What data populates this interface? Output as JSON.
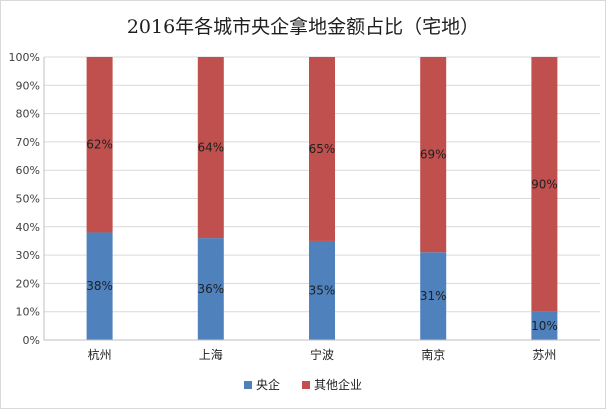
{
  "chart_data": {
    "type": "bar",
    "stacked": true,
    "percent": true,
    "title": "2016年各城市央企拿地金额占比（宅地）",
    "categories": [
      "杭州",
      "上海",
      "宁波",
      "南京",
      "苏州"
    ],
    "series": [
      {
        "name": "央企",
        "values": [
          38,
          36,
          35,
          31,
          10
        ],
        "labels": [
          "38%",
          "36%",
          "35%",
          "31%",
          "10%"
        ],
        "color": "#4f81bd"
      },
      {
        "name": "其他企业",
        "values": [
          62,
          64,
          65,
          69,
          90
        ],
        "labels": [
          "62%",
          "64%",
          "65%",
          "69%",
          "90%"
        ],
        "color": "#c0504d"
      }
    ],
    "ylim": [
      0,
      100
    ],
    "yticks": [
      "0%",
      "10%",
      "20%",
      "30%",
      "40%",
      "50%",
      "60%",
      "70%",
      "80%",
      "90%",
      "100%"
    ],
    "grid": true,
    "legend": "bottom"
  }
}
